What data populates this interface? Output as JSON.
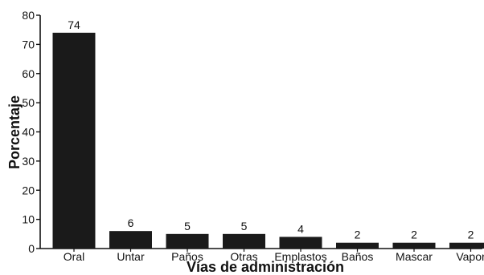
{
  "chart_data": {
    "type": "bar",
    "categories": [
      "Oral",
      "Untar",
      "Paños",
      "Otras",
      "Emplastos",
      "Baños",
      "Mascar",
      "Vapor"
    ],
    "values": [
      74,
      6,
      5,
      5,
      4,
      2,
      2,
      2
    ],
    "xlabel": "Vías de administración",
    "ylabel": "Porcentaje",
    "ylim": [
      0,
      80
    ],
    "yticks": [
      0,
      10,
      20,
      30,
      40,
      50,
      60,
      70,
      80
    ],
    "grid": false,
    "bar_color": "#1a1a1a"
  }
}
